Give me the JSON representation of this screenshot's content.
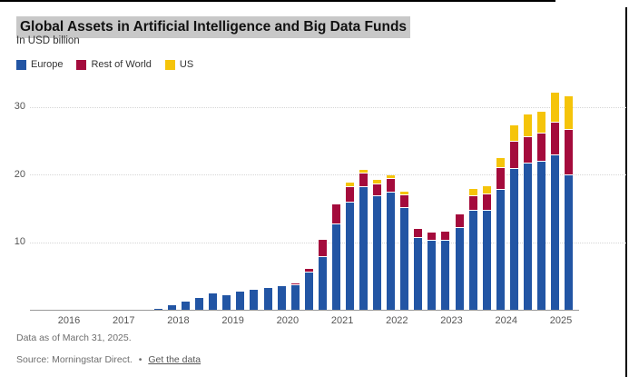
{
  "title": "Global Assets in Artificial Intelligence and Big Data Funds",
  "subtitle": "In USD billion",
  "footer": {
    "footnote": "Data as of March 31, 2025.",
    "source_text": "Source: Morningstar Direct.",
    "separator": "•",
    "link_label": "Get the data"
  },
  "colors": {
    "europe": "#2255A4",
    "rest_of_world": "#A40B3C",
    "us": "#F5C40A",
    "title_highlight": "#C8C8C8",
    "axis_line": "#9A9A9A",
    "gridline": "#D6D6D6"
  },
  "chart_data": {
    "type": "bar",
    "stacked": true,
    "title": "Global Assets in Artificial Intelligence and Big Data Funds",
    "ylabel": "In USD billion",
    "grid": "horizontal-dotted",
    "legend_position": "top-left",
    "ylim": [
      0,
      32.5
    ],
    "yticks": [
      10,
      20,
      30
    ],
    "x_tick_labels": [
      "2016",
      "2017",
      "2018",
      "2019",
      "2020",
      "2021",
      "2022",
      "2023",
      "2024",
      "2025"
    ],
    "categories": [
      "2016 Q1",
      "2016 Q2",
      "2016 Q3",
      "2016 Q4",
      "2017 Q1",
      "2017 Q2",
      "2017 Q3",
      "2017 Q4",
      "2018 Q1",
      "2018 Q2",
      "2018 Q3",
      "2018 Q4",
      "2019 Q1",
      "2019 Q2",
      "2019 Q3",
      "2019 Q4",
      "2020 Q1",
      "2020 Q2",
      "2020 Q3",
      "2020 Q4",
      "2021 Q1",
      "2021 Q2",
      "2021 Q3",
      "2021 Q4",
      "2022 Q1",
      "2022 Q2",
      "2022 Q3",
      "2022 Q4",
      "2023 Q1",
      "2023 Q2",
      "2023 Q3",
      "2023 Q4",
      "2024 Q1",
      "2024 Q2",
      "2024 Q3",
      "2024 Q4",
      "2025 Q1"
    ],
    "series": [
      {
        "name": "Europe",
        "color": "#2255A4",
        "values": [
          0,
          0,
          0,
          0,
          0,
          0,
          0.2,
          0.7,
          1.2,
          1.8,
          2.4,
          2.2,
          2.7,
          2.9,
          3.2,
          3.5,
          3.7,
          5.7,
          7.9,
          12.7,
          16,
          18.2,
          16.9,
          17.5,
          15.1,
          10.7,
          10.3,
          10.3,
          12.2,
          14.7,
          14.7,
          17.8,
          20.9,
          21.7,
          22,
          23,
          20
        ]
      },
      {
        "name": "Rest of World",
        "color": "#A40B3C",
        "values": [
          0,
          0,
          0,
          0,
          0,
          0,
          0,
          0,
          0,
          0,
          0,
          0,
          0,
          0,
          0,
          0,
          0.2,
          0.4,
          2.5,
          2.9,
          2.3,
          2.1,
          1.8,
          2,
          1.9,
          1.3,
          1.1,
          1.2,
          1.9,
          2.2,
          2.5,
          3.2,
          4.1,
          3.9,
          4.1,
          4.8,
          6.7
        ]
      },
      {
        "name": "US",
        "color": "#F5C40A",
        "values": [
          0,
          0,
          0,
          0,
          0,
          0,
          0,
          0,
          0,
          0,
          0,
          0,
          0,
          0,
          0,
          0,
          0,
          0,
          0,
          0,
          0.5,
          0.4,
          0.5,
          0.4,
          0.5,
          0,
          0,
          0,
          0,
          0.9,
          1.1,
          1.4,
          2.3,
          3.2,
          3.2,
          4.3,
          4.9
        ]
      }
    ]
  }
}
